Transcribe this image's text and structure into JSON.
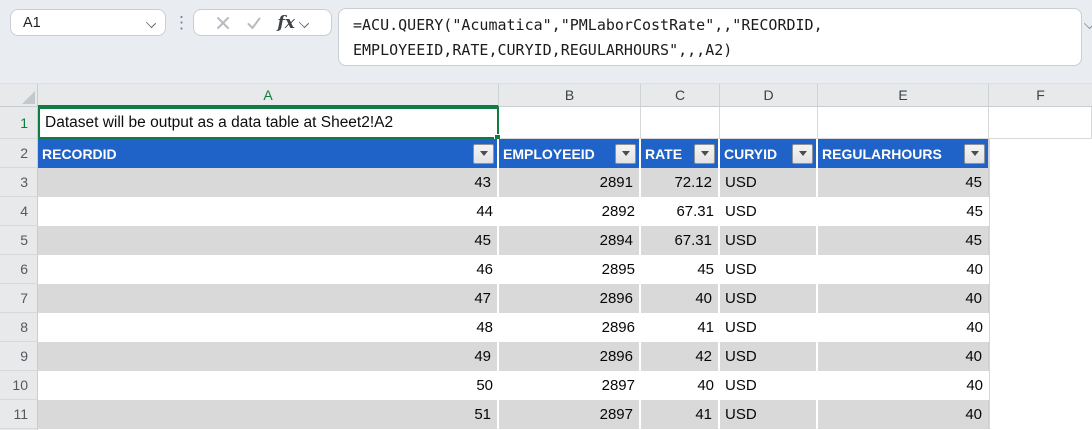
{
  "name_box": {
    "value": "A1"
  },
  "toolbar": {
    "cancel_icon": "cancel-x",
    "enter_icon": "checkmark",
    "insert_function_label": "fx"
  },
  "formula_bar": {
    "line1": "=ACU.QUERY(\"Acumatica\",\"PMLaborCostRate\",,\"RECORDID,",
    "line2": "EMPLOYEEID,RATE,CURYID,REGULARHOURS\",,,A2)"
  },
  "grid": {
    "column_letters": [
      "A",
      "B",
      "C",
      "D",
      "E",
      "F"
    ],
    "selected_cell": "A1",
    "selected_column": "A",
    "row_numbers": [
      "1",
      "2",
      "3",
      "4",
      "5",
      "6",
      "7",
      "8",
      "9",
      "10",
      "11"
    ],
    "cell_a1_text": "Dataset will be output as a data table at Sheet2!A2",
    "table": {
      "headers": [
        "RECORDID",
        "EMPLOYEEID",
        "RATE",
        "CURYID",
        "REGULARHOURS"
      ],
      "rows": [
        [
          "43",
          "2891",
          "72.12",
          "USD",
          "45"
        ],
        [
          "44",
          "2892",
          "67.31",
          "USD",
          "45"
        ],
        [
          "45",
          "2894",
          "67.31",
          "USD",
          "45"
        ],
        [
          "46",
          "2895",
          "45",
          "USD",
          "40"
        ],
        [
          "47",
          "2896",
          "40",
          "USD",
          "40"
        ],
        [
          "48",
          "2896",
          "41",
          "USD",
          "40"
        ],
        [
          "49",
          "2896",
          "42",
          "USD",
          "40"
        ],
        [
          "50",
          "2897",
          "40",
          "USD",
          "40"
        ],
        [
          "51",
          "2897",
          "41",
          "USD",
          "40"
        ]
      ]
    }
  },
  "colors": {
    "table_header_blue": "#1f63c8",
    "band_gray": "#d9d9d9",
    "selection_green": "#107c41",
    "chrome_bg": "#e9edf1",
    "header_bg": "#e8e9eb"
  }
}
